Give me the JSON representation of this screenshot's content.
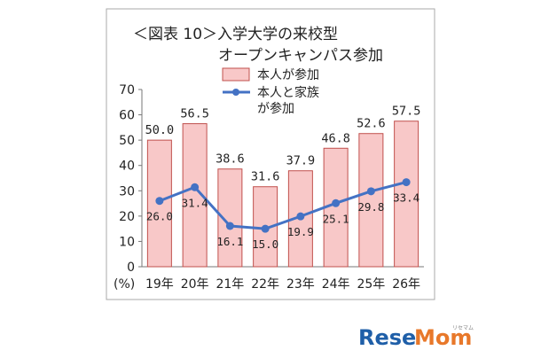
{
  "chart_data": {
    "type": "bar",
    "title_line1": "＜図表 10＞入学大学の来校型",
    "title_line2": "オープンキャンパス参加",
    "categories": [
      "19年",
      "20年",
      "21年",
      "22年",
      "23年",
      "24年",
      "25年",
      "26年"
    ],
    "ylabel": "(%)",
    "ylim": [
      0,
      70
    ],
    "yticks": [
      0,
      10,
      20,
      30,
      40,
      50,
      60,
      70
    ],
    "ytick_labels": [
      "0",
      "10",
      "20",
      "30",
      "40",
      "50",
      "60",
      "70"
    ],
    "legend_position": "top-left",
    "series": [
      {
        "name": "本人が参加",
        "type": "bar",
        "color": "#f8c8c8",
        "edge_color": "#c0504d",
        "values": [
          50.0,
          56.5,
          38.6,
          31.6,
          37.9,
          46.8,
          52.6,
          57.5
        ],
        "labels": [
          "50.0",
          "56.5",
          "38.6",
          "31.6",
          "37.9",
          "46.8",
          "52.6",
          "57.5"
        ]
      },
      {
        "name_line1": "本人と家族",
        "name_line2": "が参加",
        "type": "line",
        "color": "#4472c4",
        "values": [
          26.0,
          31.4,
          16.1,
          15.0,
          19.9,
          25.1,
          29.8,
          33.4
        ],
        "labels": [
          "26.0",
          "31.4",
          "16.1",
          "15.0",
          "19.9",
          "25.1",
          "29.8",
          "33.4"
        ]
      }
    ]
  },
  "watermark": {
    "part1": "Rese",
    "part2": "Mom",
    "small": "リセマム"
  }
}
